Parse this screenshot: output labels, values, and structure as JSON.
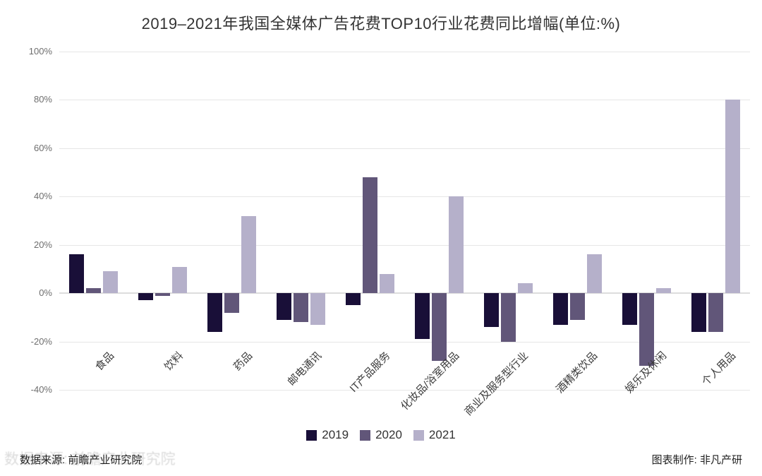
{
  "title": "2019–2021年我国全媒体广告花费TOP10行业花费同比增幅(单位:%)",
  "chart_data": {
    "type": "bar",
    "title": "2019–2021年我国全媒体广告花费TOP10行业花费同比增幅(单位:%)",
    "categories": [
      "食品",
      "饮料",
      "药品",
      "邮电通讯",
      "IT产品服务",
      "化妆品/浴室用品",
      "商业及服务型行业",
      "酒精类饮品",
      "娱乐及休闲",
      "个人用品"
    ],
    "series": [
      {
        "name": "2019",
        "values": [
          16,
          -3,
          -16,
          -11,
          -5,
          -19,
          -14,
          -13,
          -13,
          -16
        ]
      },
      {
        "name": "2020",
        "values": [
          2,
          -1,
          -8,
          -12,
          48,
          -28,
          -20,
          -11,
          -30,
          -16
        ]
      },
      {
        "name": "2021",
        "values": [
          9,
          11,
          32,
          -13,
          8,
          40,
          4,
          16,
          2,
          80
        ]
      }
    ],
    "colors": [
      "#190f38",
      "#615679",
      "#b5b0ca"
    ],
    "ylim": [
      -40,
      100
    ],
    "yticks": [
      100,
      80,
      60,
      40,
      20,
      0,
      -20,
      -40
    ],
    "ytick_suffix": "%",
    "xlabel": "",
    "ylabel": "",
    "grid": true,
    "legend_position": "bottom"
  },
  "legend": [
    {
      "label": "2019",
      "color": "#190f38"
    },
    {
      "label": "2020",
      "color": "#615679"
    },
    {
      "label": "2021",
      "color": "#b5b0ca"
    }
  ],
  "footer": {
    "source": "数据来源: 前瞻产业研究院",
    "credit": "图表制作: 非凡产研"
  }
}
